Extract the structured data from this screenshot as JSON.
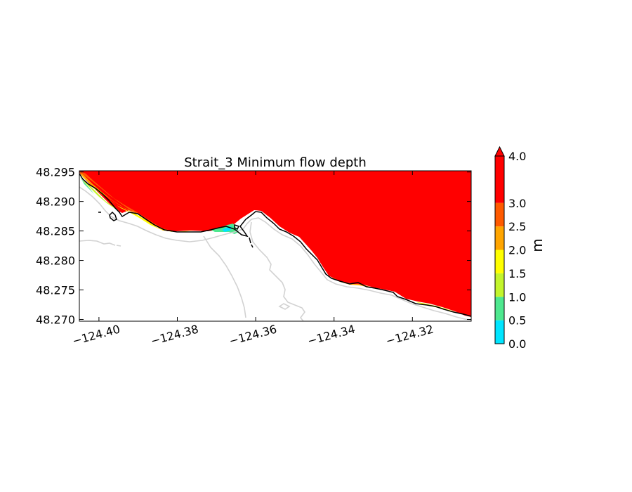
{
  "chart_data": {
    "type": "heatmap",
    "title": "Strait_3 Minimum flow depth",
    "xlabel": "",
    "ylabel": "",
    "xlim": [
      -124.405,
      -124.305
    ],
    "ylim": [
      48.2697,
      48.2952
    ],
    "x_ticks": [
      {
        "value": -124.4,
        "label": "−124.40"
      },
      {
        "value": -124.38,
        "label": "−124.38"
      },
      {
        "value": -124.36,
        "label": "−124.36"
      },
      {
        "value": -124.34,
        "label": "−124.34"
      },
      {
        "value": -124.32,
        "label": "−124.32"
      }
    ],
    "y_ticks": [
      {
        "value": 48.295,
        "label": "48.295"
      },
      {
        "value": 48.29,
        "label": "48.290"
      },
      {
        "value": 48.285,
        "label": "48.285"
      },
      {
        "value": 48.28,
        "label": "48.280"
      },
      {
        "value": 48.275,
        "label": "48.275"
      },
      {
        "value": 48.27,
        "label": "48.270"
      }
    ],
    "grid": false,
    "colorbar": {
      "label": "m",
      "position": "right",
      "extend": "max",
      "levels": [
        {
          "from": 0.0,
          "to": 0.5,
          "color": "#00e5ff"
        },
        {
          "from": 0.5,
          "to": 1.0,
          "color": "#4ee88f"
        },
        {
          "from": 1.0,
          "to": 1.5,
          "color": "#c3f52c"
        },
        {
          "from": 1.5,
          "to": 2.0,
          "color": "#ffff00"
        },
        {
          "from": 2.0,
          "to": 2.5,
          "color": "#ffa500"
        },
        {
          "from": 2.5,
          "to": 3.0,
          "color": "#ff5a00"
        },
        {
          "from": 3.0,
          "to": 4.0,
          "color": "#ff0000"
        }
      ],
      "tick_labels": [
        "0.0",
        "0.5",
        "1.0",
        "1.5",
        "2.0",
        "2.5",
        "3.0",
        "4.0"
      ]
    },
    "dominant_value": "> 3.0 m",
    "colors": {
      "deep": "#ff0000",
      "shoreline": "#000000",
      "contour": "#cfcfcf"
    }
  }
}
